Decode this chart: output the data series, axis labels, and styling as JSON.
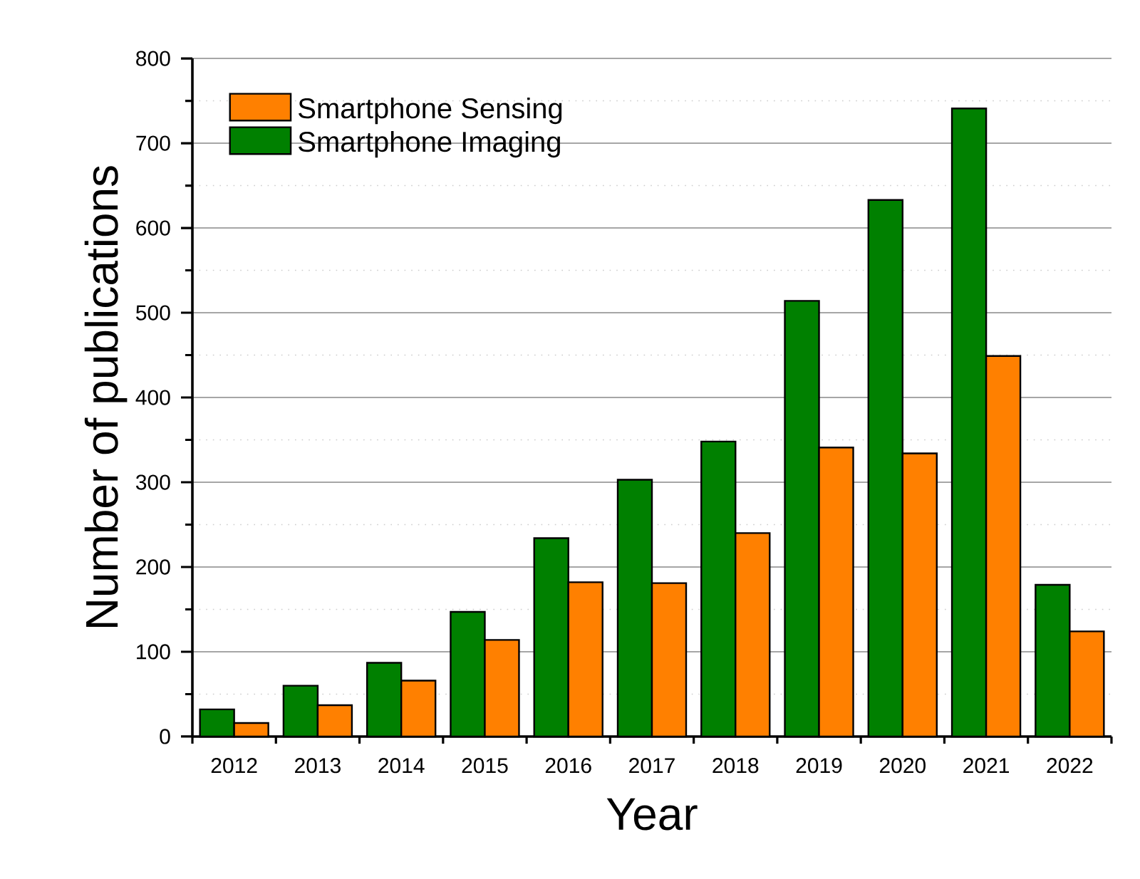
{
  "chart_data": {
    "type": "bar",
    "xlabel": "Year",
    "ylabel": "Number of publications",
    "categories": [
      "2012",
      "2013",
      "2014",
      "2015",
      "2016",
      "2017",
      "2018",
      "2019",
      "2020",
      "2021",
      "2022"
    ],
    "series": [
      {
        "name": "Smartphone Sensing",
        "color": "#ff8000",
        "values": [
          16,
          37,
          66,
          114,
          182,
          181,
          240,
          341,
          334,
          449,
          124
        ]
      },
      {
        "name": "Smartphone Imaging",
        "color": "#008000",
        "values": [
          32,
          60,
          87,
          147,
          234,
          303,
          348,
          514,
          633,
          741,
          179
        ]
      }
    ],
    "ylim": [
      0,
      800
    ],
    "yticks": [
      0,
      100,
      200,
      300,
      400,
      500,
      600,
      700,
      800
    ],
    "grid": "y",
    "legend": "top left"
  }
}
